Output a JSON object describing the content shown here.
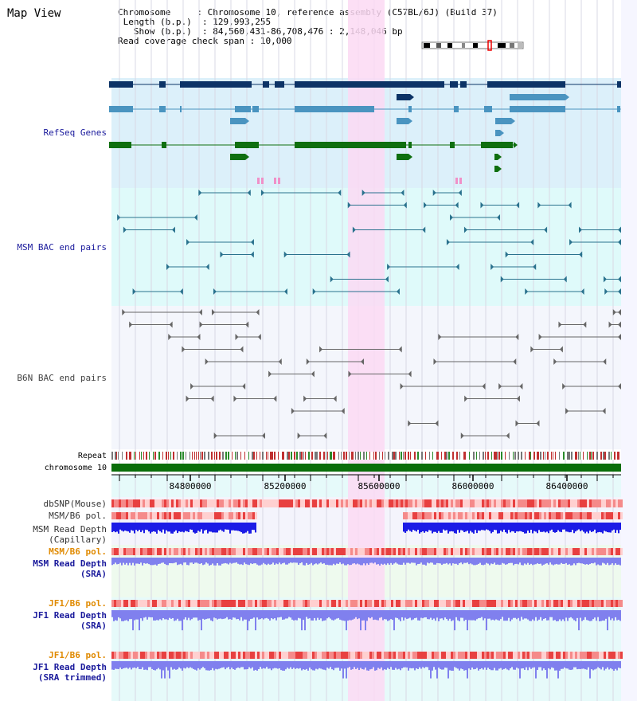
{
  "view": {
    "title": "Map View",
    "info": {
      "chromosome_key": "Chromosome",
      "chromosome_val": ": Chromosome 10, reference assembly (C57BL/6J) (Build 37)",
      "length_key": "Length (b.p.)",
      "length_val": ": 129,993,255",
      "show_key": "Show (b.p.)",
      "show_val": ": 84,560,431-86,708,476 : 2,148,046 bp",
      "span_key": "Read coverage check span",
      "span_val": ": 10,000"
    }
  },
  "tracks": {
    "refseq": "RefSeq Genes",
    "msm_bac": "MSM BAC end pairs",
    "b6n_bac": "B6N BAC end pairs",
    "repeat": "Repeat",
    "chromosome": "chromosome 10",
    "dbsnp": "dbSNP(Mouse)",
    "msm_b6_pol": "MSM/B6 pol.",
    "msm_read_depth_cap": "MSM Read Depth\n(Capillary)",
    "msm_b6_pol_sra": "MSM/B6 pol.",
    "msm_read_depth_sra": "MSM Read Depth\n(SRA)",
    "jf1_b6_pol": "JF1/B6 pol.",
    "jf1_read_depth_sra": "JF1 Read Depth\n(SRA)",
    "jf1_b6_pol_trim": "JF1/B6 pol.",
    "jf1_read_depth_trim": "JF1 Read Depth\n(SRA trimmed)"
  },
  "axis": {
    "ticks": [
      "84800000",
      "85200000",
      "85600000",
      "86000000",
      "86400000"
    ]
  },
  "colors": {
    "highlight": "#fbd9f3",
    "refseq_bg": "#dcf0fa",
    "msm_bg": "#dffafa",
    "b6n_bg": "#f4f6fc",
    "refseq_dark": "#0c3366",
    "refseq_mid": "#4a94c0",
    "refseq_green": "#0f6f0f",
    "msm_line": "#2a728e",
    "b6n_line": "#666666",
    "chrom_green": "#0a6e0a",
    "depth_blue": "#1c1ce6",
    "depth_light": "#8080ee",
    "label_blue": "#1a1a9c",
    "label_orange": "#e08a00"
  }
}
